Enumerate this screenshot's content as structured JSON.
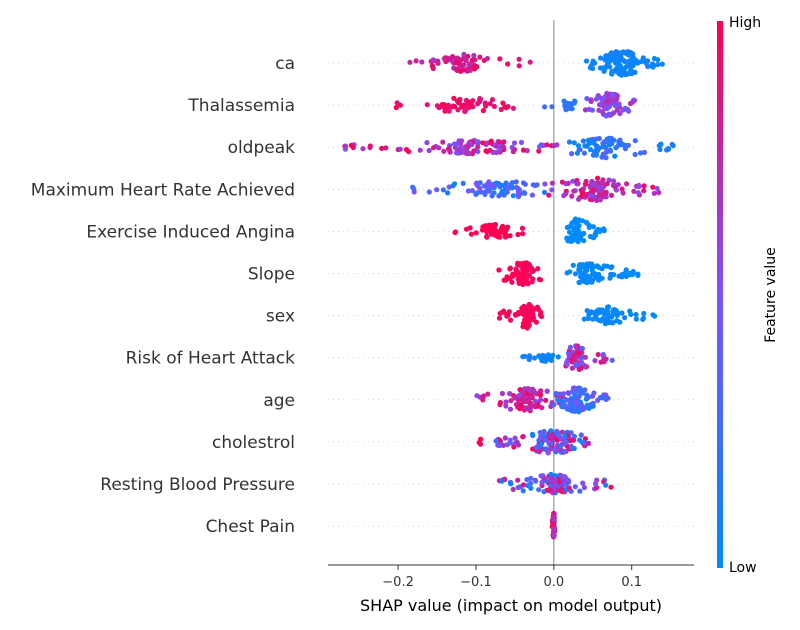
{
  "chart_data": {
    "type": "scatter",
    "subtype": "shap-beeswarm",
    "xlabel": "SHAP value (impact on model output)",
    "xlim": [
      -0.29,
      0.18
    ],
    "xticks": [
      {
        "value": -0.2,
        "label": "−0.2"
      },
      {
        "value": -0.1,
        "label": "−0.1"
      },
      {
        "value": 0.0,
        "label": "0.0"
      },
      {
        "value": 0.1,
        "label": "0.1"
      }
    ],
    "features": [
      {
        "name": "ca",
        "clusters": [
          {
            "low": -0.185,
            "high": -0.03,
            "center": -0.12,
            "fv_low": 0.65,
            "fv_high": 1.0,
            "n": 70,
            "width": 9
          },
          {
            "low": 0.04,
            "high": 0.14,
            "center": 0.085,
            "fv_low": 0.0,
            "fv_high": 0.1,
            "n": 110,
            "width": 13
          }
        ]
      },
      {
        "name": "Thalassemia",
        "clusters": [
          {
            "low": -0.205,
            "high": -0.05,
            "center": -0.115,
            "fv_low": 0.85,
            "fv_high": 1.0,
            "n": 60,
            "width": 8
          },
          {
            "low": -0.015,
            "high": 0.045,
            "center": 0.02,
            "fv_low": 0.05,
            "fv_high": 0.3,
            "n": 20,
            "width": 5
          },
          {
            "low": 0.04,
            "high": 0.105,
            "center": 0.07,
            "fv_low": 0.4,
            "fv_high": 0.75,
            "n": 80,
            "width": 13
          }
        ]
      },
      {
        "name": "oldpeak",
        "clusters": [
          {
            "low": -0.27,
            "high": 0.02,
            "center": -0.1,
            "fv_low": 0.45,
            "fv_high": 1.0,
            "n": 110,
            "width": 7
          },
          {
            "low": 0.02,
            "high": 0.16,
            "center": 0.065,
            "fv_low": 0.0,
            "fv_high": 0.35,
            "n": 90,
            "width": 11
          }
        ]
      },
      {
        "name": "Maximum Heart Rate Achieved",
        "clusters": [
          {
            "low": -0.19,
            "high": -0.005,
            "center": -0.07,
            "fv_low": 0.0,
            "fv_high": 0.55,
            "n": 80,
            "width": 9
          },
          {
            "low": -0.01,
            "high": 0.135,
            "center": 0.05,
            "fv_low": 0.5,
            "fv_high": 1.0,
            "n": 110,
            "width": 12
          }
        ]
      },
      {
        "name": "Exercise Induced Angina",
        "clusters": [
          {
            "low": -0.13,
            "high": -0.04,
            "center": -0.075,
            "fv_low": 1.0,
            "fv_high": 1.0,
            "n": 60,
            "width": 7
          },
          {
            "low": 0.015,
            "high": 0.065,
            "center": 0.03,
            "fv_low": 0.0,
            "fv_high": 0.0,
            "n": 75,
            "width": 13
          }
        ]
      },
      {
        "name": "Slope",
        "clusters": [
          {
            "low": -0.08,
            "high": -0.015,
            "center": -0.04,
            "fv_low": 0.95,
            "fv_high": 1.0,
            "n": 75,
            "width": 12
          },
          {
            "low": 0.015,
            "high": 0.11,
            "center": 0.045,
            "fv_low": 0.0,
            "fv_high": 0.05,
            "n": 80,
            "width": 11
          }
        ]
      },
      {
        "name": "sex",
        "clusters": [
          {
            "low": -0.07,
            "high": -0.015,
            "center": -0.035,
            "fv_low": 0.95,
            "fv_high": 1.0,
            "n": 75,
            "width": 13
          },
          {
            "low": 0.035,
            "high": 0.13,
            "center": 0.07,
            "fv_low": 0.0,
            "fv_high": 0.05,
            "n": 70,
            "width": 9
          }
        ]
      },
      {
        "name": "Risk of Heart Attack",
        "clusters": [
          {
            "low": -0.04,
            "high": 0.01,
            "center": -0.01,
            "fv_low": 0.0,
            "fv_high": 0.1,
            "n": 25,
            "width": 4
          },
          {
            "low": 0.015,
            "high": 0.075,
            "center": 0.03,
            "fv_low": 0.3,
            "fv_high": 1.0,
            "n": 70,
            "width": 13
          }
        ]
      },
      {
        "name": "age",
        "clusters": [
          {
            "low": -0.1,
            "high": 0.015,
            "center": -0.035,
            "fv_low": 0.55,
            "fv_high": 1.0,
            "n": 100,
            "width": 12
          },
          {
            "low": 0.0,
            "high": 0.07,
            "center": 0.03,
            "fv_low": 0.0,
            "fv_high": 0.55,
            "n": 90,
            "width": 13
          }
        ]
      },
      {
        "name": "cholestrol",
        "clusters": [
          {
            "low": -0.075,
            "high": 0.05,
            "center": 0.0,
            "fv_low": 0.0,
            "fv_high": 1.0,
            "n": 140,
            "width": 12
          },
          {
            "low": -0.096,
            "high": -0.093,
            "center": -0.094,
            "fv_low": 1.0,
            "fv_high": 1.0,
            "n": 3,
            "width": 3
          }
        ]
      },
      {
        "name": "Resting Blood Pressure",
        "clusters": [
          {
            "low": -0.07,
            "high": 0.075,
            "center": 0.0,
            "fv_low": 0.0,
            "fv_high": 1.0,
            "n": 100,
            "width": 10
          }
        ]
      },
      {
        "name": "Chest Pain",
        "clusters": [
          {
            "low": -0.002,
            "high": 0.002,
            "center": 0.0,
            "fv_low": 0.6,
            "fv_high": 1.0,
            "n": 40,
            "width": 14
          }
        ]
      }
    ],
    "colorbar": {
      "label": "Feature value",
      "high_label": "High",
      "low_label": "Low",
      "color_low": "#008afb",
      "color_mid": "#7c52ff",
      "color_high": "#ff0052"
    }
  }
}
